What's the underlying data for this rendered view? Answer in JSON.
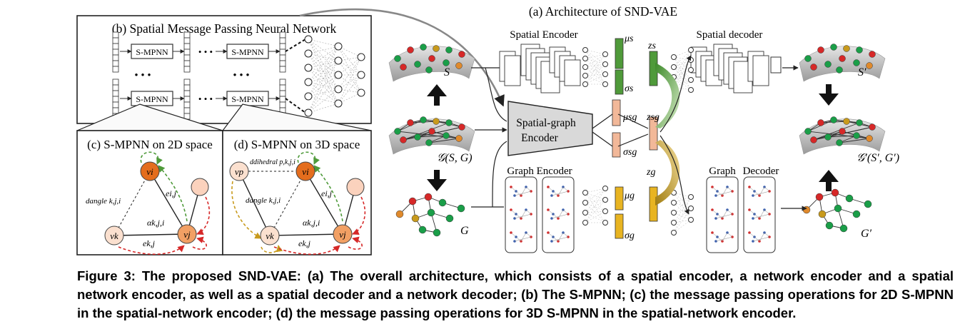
{
  "panels": {
    "a_title": "(a) Architecture of SND-VAE",
    "b_title": "(b) Spatial Message Passing Neural Network",
    "c_title": "(c) S-MPNN on 2D space",
    "d_title": "(d) S-MPNN on 3D space"
  },
  "labels": {
    "smpnn": "S-MPNN",
    "dots": "• • •",
    "spatial_encoder": "Spatial Encoder",
    "spatial_decoder": "Spatial decoder",
    "graph_encoder": "Graph Encoder",
    "graph": "Graph",
    "decoder": "Decoder",
    "sg_encoder_1": "Spatial-graph",
    "sg_encoder_2": "Encoder",
    "S": "S",
    "S_prime": "S′",
    "G": "G",
    "G_prime": "G′",
    "GSG": "𝒢(S, G)",
    "GSG_prime": "𝒢′(S′, G′)",
    "mu_s": "μs",
    "sigma_s": "σs",
    "z_s": "zs",
    "mu_sg": "μsg",
    "sigma_sg": "σsg",
    "z_sg": "zsg",
    "mu_g": "μg",
    "sigma_g": "σg",
    "z_g": "zg",
    "vi": "vi",
    "vj": "vj",
    "vk": "vk",
    "vp": "vp",
    "eij": "ei,j",
    "ekj": "ek,j",
    "angle": "dangle k,j,i",
    "dihedral": "ddihedral p,k,j,i",
    "alpha": "αk,j,i"
  },
  "caption": {
    "prefix": "Figure 3:",
    "text": "The proposed SND-VAE: (a) The overall architecture, which consists of a spatial encoder, a network encoder and a spatial network encoder, as well as a spatial decoder and a network decoder; (b) The S-MPNN; (c) the message passing operations for 2D S-MPNN in the spatial-network encoder; (d) the message passing operations for 3D S-MPNN in the spatial-network encoder."
  },
  "colors": {
    "green": "#1a9e48",
    "red": "#d62828",
    "orange": "#e08a2c",
    "olive": "#c89a1c",
    "latent_green": "#4f9a3a",
    "latent_orange": "#e3a54a",
    "latent_yellow": "#e8b421",
    "latent_pink": "#f2b899",
    "surface": "#c9c9c9"
  }
}
